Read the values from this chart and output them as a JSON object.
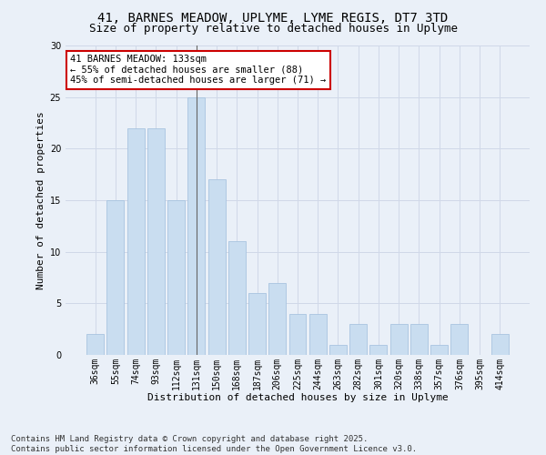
{
  "title_line1": "41, BARNES MEADOW, UPLYME, LYME REGIS, DT7 3TD",
  "title_line2": "Size of property relative to detached houses in Uplyme",
  "xlabel": "Distribution of detached houses by size in Uplyme",
  "ylabel": "Number of detached properties",
  "categories": [
    "36sqm",
    "55sqm",
    "74sqm",
    "93sqm",
    "112sqm",
    "131sqm",
    "150sqm",
    "168sqm",
    "187sqm",
    "206sqm",
    "225sqm",
    "244sqm",
    "263sqm",
    "282sqm",
    "301sqm",
    "320sqm",
    "338sqm",
    "357sqm",
    "376sqm",
    "395sqm",
    "414sqm"
  ],
  "values": [
    2,
    15,
    22,
    22,
    15,
    25,
    17,
    11,
    6,
    7,
    4,
    4,
    1,
    3,
    1,
    3,
    3,
    1,
    3,
    0,
    2
  ],
  "bar_color": "#c9ddf0",
  "bar_edge_color": "#a8c4e0",
  "highlight_bar_index": 5,
  "highlight_line_color": "#666666",
  "annotation_text": "41 BARNES MEADOW: 133sqm\n← 55% of detached houses are smaller (88)\n45% of semi-detached houses are larger (71) →",
  "annotation_box_color": "#ffffff",
  "annotation_box_edge_color": "#cc0000",
  "ylim": [
    0,
    30
  ],
  "yticks": [
    0,
    5,
    10,
    15,
    20,
    25,
    30
  ],
  "grid_color": "#d0d8e8",
  "background_color": "#eaf0f8",
  "footer_line1": "Contains HM Land Registry data © Crown copyright and database right 2025.",
  "footer_line2": "Contains public sector information licensed under the Open Government Licence v3.0.",
  "title_fontsize": 10,
  "subtitle_fontsize": 9,
  "axis_label_fontsize": 8,
  "tick_fontsize": 7,
  "annotation_fontsize": 7.5,
  "footer_fontsize": 6.5
}
